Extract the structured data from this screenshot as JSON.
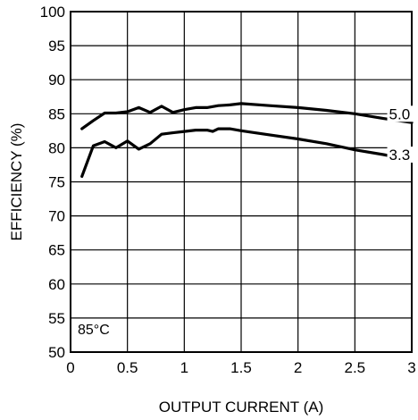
{
  "chart_data": {
    "type": "line",
    "title": "",
    "xlabel": "OUTPUT CURRENT (A)",
    "ylabel": "EFFICIENCY (%)",
    "xlim": [
      0,
      3
    ],
    "ylim": [
      50,
      100
    ],
    "x_ticks": [
      0,
      0.5,
      1,
      1.5,
      2,
      2.5,
      3
    ],
    "x_tick_labels": [
      "0",
      "0.5",
      "1",
      "1.5",
      "2",
      "2.5",
      "3"
    ],
    "y_ticks": [
      50,
      55,
      60,
      65,
      70,
      75,
      80,
      85,
      90,
      95,
      100
    ],
    "y_tick_labels": [
      "50",
      "55",
      "60",
      "65",
      "70",
      "75",
      "80",
      "85",
      "90",
      "95",
      "100"
    ],
    "grid": true,
    "annotation": "85°C",
    "series": [
      {
        "name": "5.0",
        "x": [
          0.1,
          0.2,
          0.3,
          0.4,
          0.5,
          0.6,
          0.7,
          0.8,
          0.9,
          1.0,
          1.1,
          1.2,
          1.3,
          1.4,
          1.5,
          1.75,
          2.0,
          2.25,
          2.5,
          2.75,
          3.0
        ],
        "y": [
          82.8,
          84.0,
          85.1,
          85.1,
          85.3,
          85.9,
          85.2,
          86.1,
          85.2,
          85.6,
          85.9,
          85.9,
          86.2,
          86.3,
          86.5,
          86.2,
          85.9,
          85.5,
          85.0,
          84.3,
          83.7
        ]
      },
      {
        "name": "3.3",
        "x": [
          0.1,
          0.2,
          0.3,
          0.4,
          0.5,
          0.6,
          0.7,
          0.8,
          0.9,
          1.0,
          1.1,
          1.2,
          1.25,
          1.3,
          1.4,
          1.5,
          1.75,
          2.0,
          2.25,
          2.5,
          2.75,
          3.0
        ],
        "y": [
          75.8,
          80.3,
          80.9,
          80.0,
          81.0,
          79.8,
          80.6,
          82.0,
          82.2,
          82.4,
          82.6,
          82.6,
          82.4,
          82.8,
          82.8,
          82.5,
          81.9,
          81.3,
          80.6,
          79.7,
          79.0,
          78.2
        ]
      }
    ]
  }
}
